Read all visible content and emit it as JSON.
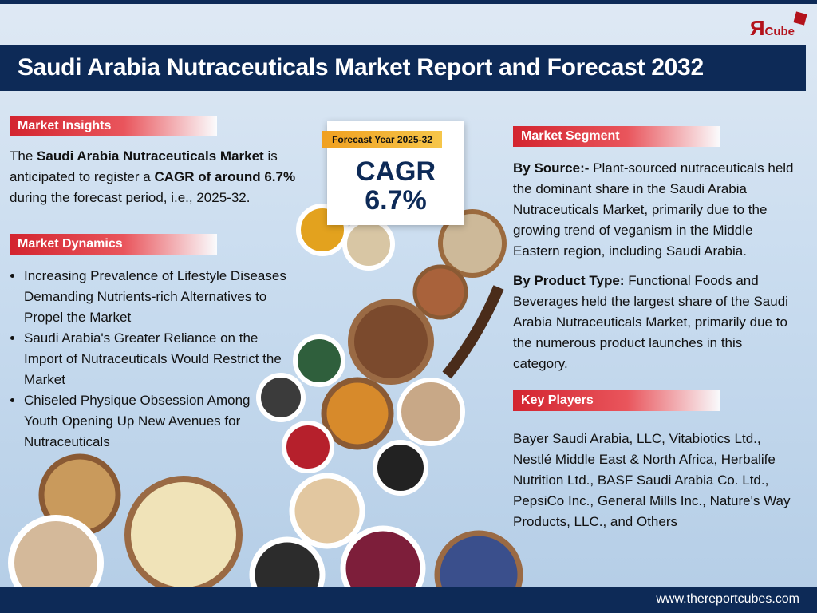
{
  "logo": {
    "mark": "Я",
    "text": "Cube"
  },
  "header": {
    "title": "Saudi Arabia Nutraceuticals Market Report and Forecast 2032"
  },
  "insights": {
    "heading": "Market Insights",
    "parts": [
      "The ",
      "Saudi Arabia Nutraceuticals Market",
      " is anticipated to register a ",
      "CAGR of around 6.7%",
      " during the forecast period, i.e., 2025-32."
    ]
  },
  "badge": {
    "ribbon": "Forecast Year 2025-32",
    "label": "CAGR",
    "value": "6.7%"
  },
  "dynamics": {
    "heading": "Market Dynamics",
    "items": [
      "Increasing Prevalence of Lifestyle Diseases Demanding Nutrients-rich Alternatives to Propel the Market",
      "Saudi Arabia's Greater Reliance on the Import of Nutraceuticals Would Restrict the Market",
      "Chiseled Physique Obsession Among Youth Opening Up New Avenues for Nutraceuticals"
    ]
  },
  "segment": {
    "heading": "Market Segment",
    "source_label": "By Source:-",
    "source_text": " Plant-sourced nutraceuticals held the dominant share in the Saudi Arabia Nutraceuticals Market, primarily due to the growing trend of veganism in the Middle Eastern region, including Saudi Arabia.",
    "product_label": "By Product Type:",
    "product_text": " Functional Foods and Beverages held the largest share of the Saudi Arabia Nutraceuticals Market, primarily due to the numerous product launches in this category."
  },
  "players": {
    "heading": "Key Players",
    "text": "Bayer Saudi Arabia, LLC, Vitabiotics Ltd., Nestlé Middle East & North Africa, Herbalife Nutrition Ltd., BASF Saudi Arabia Co. Ltd., PepsiCo Inc., General Mills Inc., Nature's Way Products, LLC., and Others"
  },
  "footer": {
    "website": "www.thereportcubes.com"
  }
}
